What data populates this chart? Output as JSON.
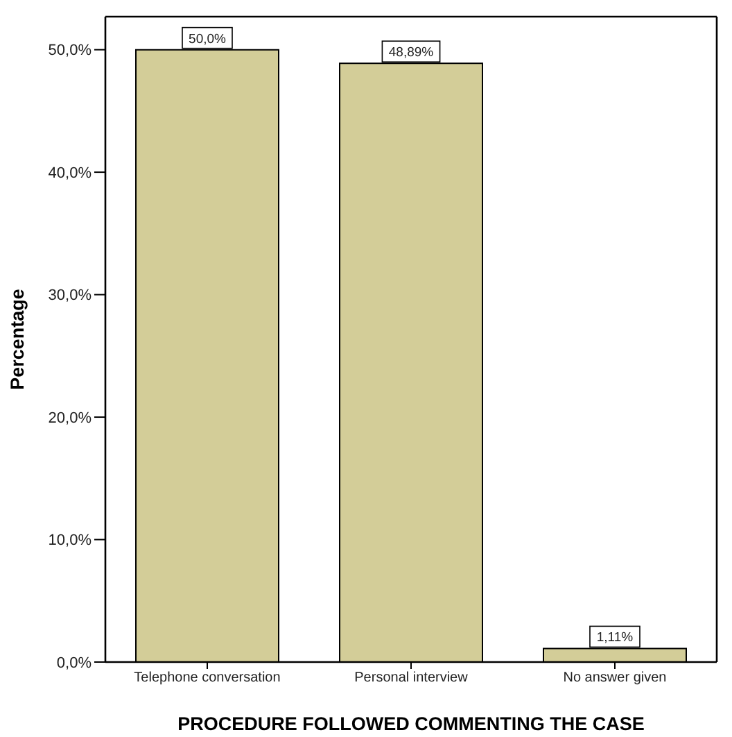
{
  "chart_data": {
    "type": "bar",
    "xlabel": "PROCEDURE FOLLOWED COMMENTING THE CASE",
    "ylabel": "Percentage",
    "categories": [
      "Telephone conversation",
      "Personal interview",
      "No answer given"
    ],
    "values": [
      50.0,
      48.89,
      1.11
    ],
    "value_labels": [
      "50,0%",
      "48,89%",
      "1,11%"
    ],
    "color": "#d3cd98",
    "ylim": [
      0,
      52.7
    ],
    "yticks": [
      {
        "value": 0,
        "label": "0,0%"
      },
      {
        "value": 10,
        "label": "10,0%"
      },
      {
        "value": 20,
        "label": "20,0%"
      },
      {
        "value": 30,
        "label": "30,0%"
      },
      {
        "value": 40,
        "label": "40,0%"
      },
      {
        "value": 50,
        "label": "50,0%"
      }
    ],
    "grid": false
  }
}
